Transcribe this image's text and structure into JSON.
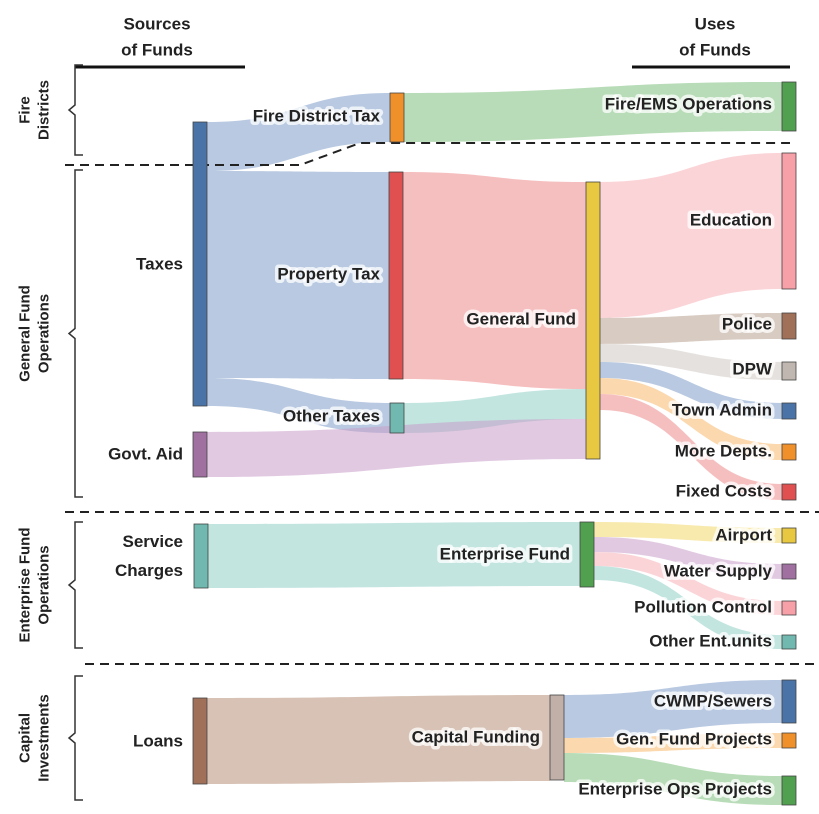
{
  "headers": {
    "sources": [
      "Sources",
      "of Funds"
    ],
    "uses": [
      "Uses",
      "of Funds"
    ]
  },
  "sections": [
    {
      "lines": [
        "Fire",
        "Districts"
      ]
    },
    {
      "lines": [
        "General Fund",
        "Operations"
      ]
    },
    {
      "lines": [
        "Enterprise Fund",
        "Operations"
      ]
    },
    {
      "lines": [
        "Capital",
        "Investments"
      ]
    }
  ],
  "nodes": [
    {
      "lines": [
        "Taxes"
      ]
    },
    {
      "lines": [
        "Govt. Aid"
      ]
    },
    {
      "lines": [
        "Service",
        "Charges"
      ]
    },
    {
      "lines": [
        "Loans"
      ]
    },
    {
      "lines": [
        "Fire District Tax"
      ]
    },
    {
      "lines": [
        "Property Tax"
      ]
    },
    {
      "lines": [
        "Other Taxes"
      ]
    },
    {
      "lines": [
        "General Fund"
      ]
    },
    {
      "lines": [
        "Enterprise Fund"
      ]
    },
    {
      "lines": [
        "Capital Funding"
      ]
    },
    {
      "lines": [
        "Fire/EMS Operations"
      ]
    },
    {
      "lines": [
        "Education"
      ]
    },
    {
      "lines": [
        "Police"
      ]
    },
    {
      "lines": [
        "DPW"
      ]
    },
    {
      "lines": [
        "Town Admin"
      ]
    },
    {
      "lines": [
        "More Depts."
      ]
    },
    {
      "lines": [
        "Fixed Costs"
      ]
    },
    {
      "lines": [
        "Airport"
      ]
    },
    {
      "lines": [
        "Water Supply"
      ]
    },
    {
      "lines": [
        "Pollution Control"
      ]
    },
    {
      "lines": [
        "Other Ent.units"
      ]
    },
    {
      "lines": [
        "CWMP/Sewers"
      ]
    },
    {
      "lines": [
        "Gen. Fund Projects"
      ]
    },
    {
      "lines": [
        "Enterprise Ops Projects"
      ]
    }
  ]
}
